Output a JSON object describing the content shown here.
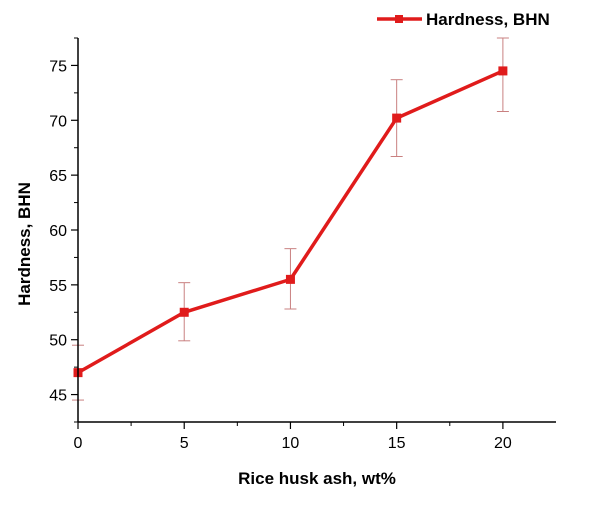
{
  "chart_data": {
    "type": "line",
    "title": "",
    "xlabel": "Rice husk ash, wt%",
    "ylabel": "Hardness, BHN",
    "xlim": [
      0,
      22.5
    ],
    "ylim": [
      42.5,
      77.5
    ],
    "x_ticks": [
      0,
      5,
      10,
      15,
      20
    ],
    "y_ticks": [
      45,
      50,
      55,
      60,
      65,
      70,
      75
    ],
    "grid": false,
    "legend_position": "top-right",
    "colors": {
      "series": "#e01b1b",
      "error_bars": "#c98080",
      "axis": "#000000"
    },
    "series": [
      {
        "name": "Hardness, BHN",
        "x": [
          0,
          5,
          10,
          15,
          20
        ],
        "y": [
          47.0,
          52.5,
          55.5,
          70.2,
          74.5
        ],
        "error_low": [
          44.5,
          49.9,
          52.8,
          66.7,
          70.8
        ],
        "error_high": [
          49.5,
          55.2,
          58.3,
          73.7,
          77.5
        ],
        "marker": "square"
      }
    ]
  }
}
